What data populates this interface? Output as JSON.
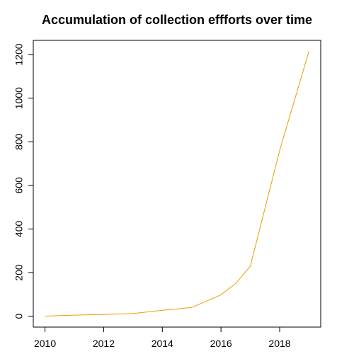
{
  "chart_data": {
    "type": "line",
    "title": "Accumulation of collection effforts over time",
    "xlabel": "",
    "ylabel": "",
    "x": [
      2010,
      2010.5,
      2011,
      2012,
      2013,
      2014,
      2015,
      2016,
      2016.5,
      2017,
      2018,
      2019
    ],
    "series": [
      {
        "values": [
          0,
          3,
          5,
          8,
          12,
          27,
          40,
          98,
          150,
          230,
          760,
          1215
        ],
        "color": "#E69F00"
      }
    ],
    "xlim": [
      2009.6,
      2019.4
    ],
    "ylim": [
      -50,
      1265
    ],
    "xticks": [
      "2010",
      "2012",
      "2014",
      "2016",
      "2018"
    ],
    "yticks": [
      "0",
      "200",
      "400",
      "600",
      "800",
      "1000",
      "1200"
    ],
    "grid": false,
    "legend": "none"
  }
}
